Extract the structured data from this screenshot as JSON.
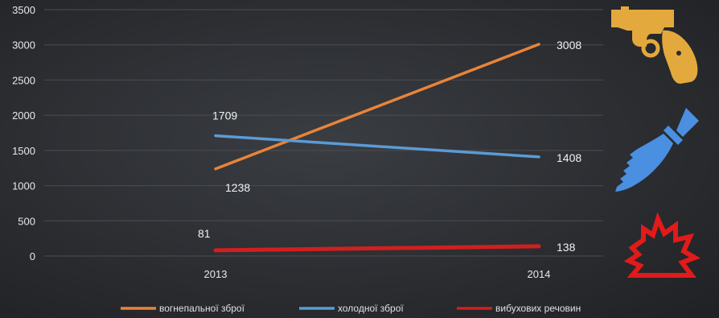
{
  "chart_data": {
    "type": "line",
    "x": [
      "2013",
      "2014"
    ],
    "ylim": [
      0,
      3500
    ],
    "yticks": [
      0,
      500,
      1000,
      1500,
      2000,
      2500,
      3000,
      3500
    ],
    "grid": true,
    "legend_position": "bottom",
    "series": [
      {
        "name": "вогнепальної зброї",
        "values": [
          1238,
          3008
        ],
        "color": "#e8843a",
        "icon": "revolver-icon",
        "icon_color": "#e4a93c"
      },
      {
        "name": "холодної зброї",
        "values": [
          1709,
          1408
        ],
        "color": "#5b9bd5",
        "icon": "knife-icon",
        "icon_color": "#4a8fe0"
      },
      {
        "name": "вибухових речовин",
        "values": [
          81,
          138
        ],
        "color": "#d11f1f",
        "icon": "explosion-icon",
        "icon_color": "#e21a1a"
      }
    ]
  }
}
